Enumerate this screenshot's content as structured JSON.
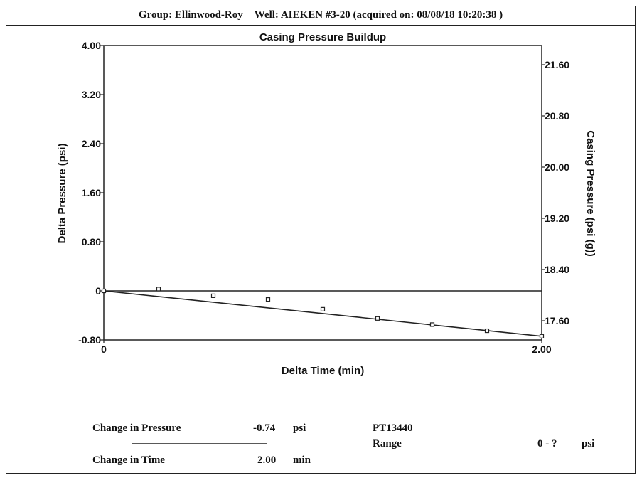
{
  "header": {
    "group": "Group: Ellinwood-Roy",
    "well": "Well: AIEKEN #3-20 (acquired on: 08/08/18 10:20:38 )"
  },
  "chart_data": {
    "type": "scatter",
    "title": "Casing Pressure Buildup",
    "xlabel": "Delta Time (min)",
    "ylabel": "Delta Pressure (psi)",
    "y2label": "Casing Pressure (psi (g))",
    "xlim": [
      0,
      2.0
    ],
    "ylim": [
      -0.8,
      4.0
    ],
    "y2lim": [
      17.3,
      21.9
    ],
    "x_ticks": [
      "0",
      "2.00"
    ],
    "y_ticks": [
      {
        "value": 4.0,
        "label": "4.00"
      },
      {
        "value": 3.2,
        "label": "3.20"
      },
      {
        "value": 2.4,
        "label": "2.40"
      },
      {
        "value": 1.6,
        "label": "1.60"
      },
      {
        "value": 0.8,
        "label": "0.80"
      },
      {
        "value": 0,
        "label": "0"
      },
      {
        "value": -0.8,
        "label": "-0.80"
      }
    ],
    "y2_ticks": [
      {
        "value": 21.6,
        "label": "21.60"
      },
      {
        "value": 20.8,
        "label": "20.80"
      },
      {
        "value": 20.0,
        "label": "20.00"
      },
      {
        "value": 19.2,
        "label": "19.20"
      },
      {
        "value": 18.4,
        "label": "18.40"
      },
      {
        "value": 17.6,
        "label": "17.60"
      }
    ],
    "points": [
      {
        "x": 0.0,
        "y": 0.0
      },
      {
        "x": 0.25,
        "y": 0.03
      },
      {
        "x": 0.5,
        "y": -0.08
      },
      {
        "x": 0.75,
        "y": -0.14
      },
      {
        "x": 1.0,
        "y": -0.3
      },
      {
        "x": 1.25,
        "y": -0.45
      },
      {
        "x": 1.5,
        "y": -0.55
      },
      {
        "x": 1.75,
        "y": -0.65
      },
      {
        "x": 2.0,
        "y": -0.74
      }
    ],
    "fit_line": [
      {
        "x": 0.0,
        "y": 0.0
      },
      {
        "x": 2.0,
        "y": -0.74
      }
    ],
    "zero_line": 0,
    "grid": false
  },
  "summary": {
    "pressure_label": "Change in Pressure",
    "pressure_value": "-0.74",
    "pressure_unit": "psi",
    "time_label": "Change in Time",
    "time_value": "2.00",
    "time_unit": "min",
    "sensor_id": "PT13440",
    "range_label": "Range",
    "range_value": "0 - ?",
    "range_unit": "psi"
  }
}
